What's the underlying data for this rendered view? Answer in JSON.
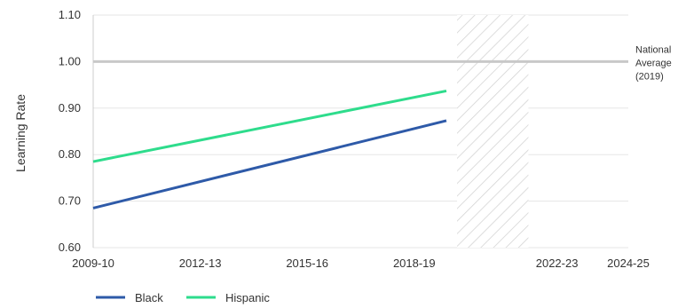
{
  "chart_data": {
    "type": "line",
    "ylabel": "Learning Rate",
    "xlabel": "",
    "x_ticks": [
      "2009-10",
      "2012-13",
      "2015-16",
      "2018-19",
      "2022-23",
      "2024-25"
    ],
    "x_tick_values": [
      2009,
      2012,
      2015,
      2018,
      2022,
      2024
    ],
    "xlim": [
      2009,
      2024
    ],
    "ylim": [
      0.6,
      1.1
    ],
    "y_ticks": [
      0.6,
      0.7,
      0.8,
      0.9,
      1.0,
      1.1
    ],
    "y_tick_labels": [
      "0.60",
      "0.70",
      "0.80",
      "0.90",
      "1.00",
      "1.10"
    ],
    "grid": true,
    "series": [
      {
        "name": "Black",
        "color": "#2E5AA8",
        "points": [
          [
            2009,
            0.685
          ],
          [
            2018.9,
            0.873
          ]
        ]
      },
      {
        "name": "Hispanic",
        "color": "#2EDC8C",
        "points": [
          [
            2009,
            0.785
          ],
          [
            2018.9,
            0.937
          ]
        ]
      }
    ],
    "reference_line": {
      "value": 1.0,
      "label_lines": [
        "National",
        "Average",
        "(2019)"
      ],
      "color": "#C8C8C8"
    },
    "hatched_region": {
      "x_start": 2019.2,
      "x_end": 2021.2
    },
    "legend": {
      "placement": "bottom-left",
      "items": [
        "Black",
        "Hispanic"
      ]
    }
  }
}
